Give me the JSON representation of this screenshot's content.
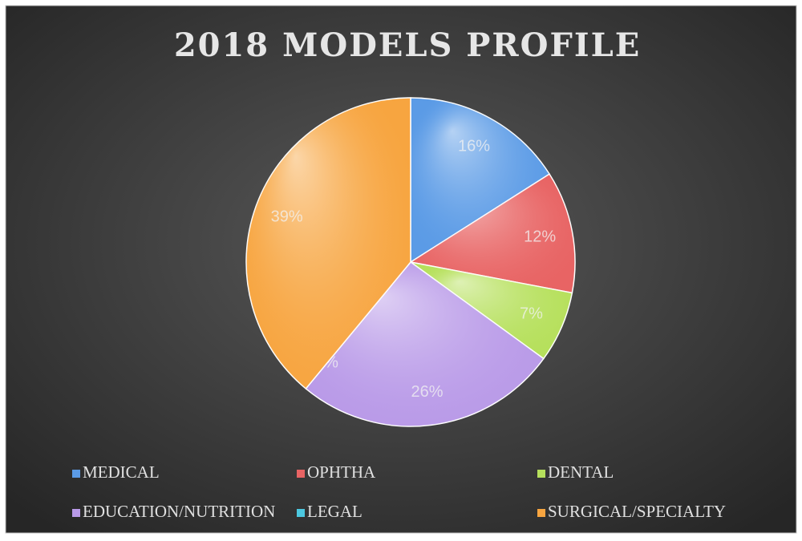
{
  "chart_data": {
    "type": "pie",
    "title": "2018 MODELS PROFILE",
    "categories": [
      "MEDICAL",
      "OPHTHA",
      "DENTAL",
      "EDUCATION/NUTRITION",
      "LEGAL",
      "SURGICAL/SPECIALTY"
    ],
    "values": [
      16,
      12,
      7,
      26,
      0,
      39
    ],
    "value_labels": [
      "16%",
      "12%",
      "7%",
      "26%",
      "0%",
      "39%"
    ],
    "colors": [
      "#5b9be6",
      "#e86464",
      "#b6e05c",
      "#b99ae8",
      "#4cc8e0",
      "#f7a540"
    ],
    "legend": "bottom"
  }
}
